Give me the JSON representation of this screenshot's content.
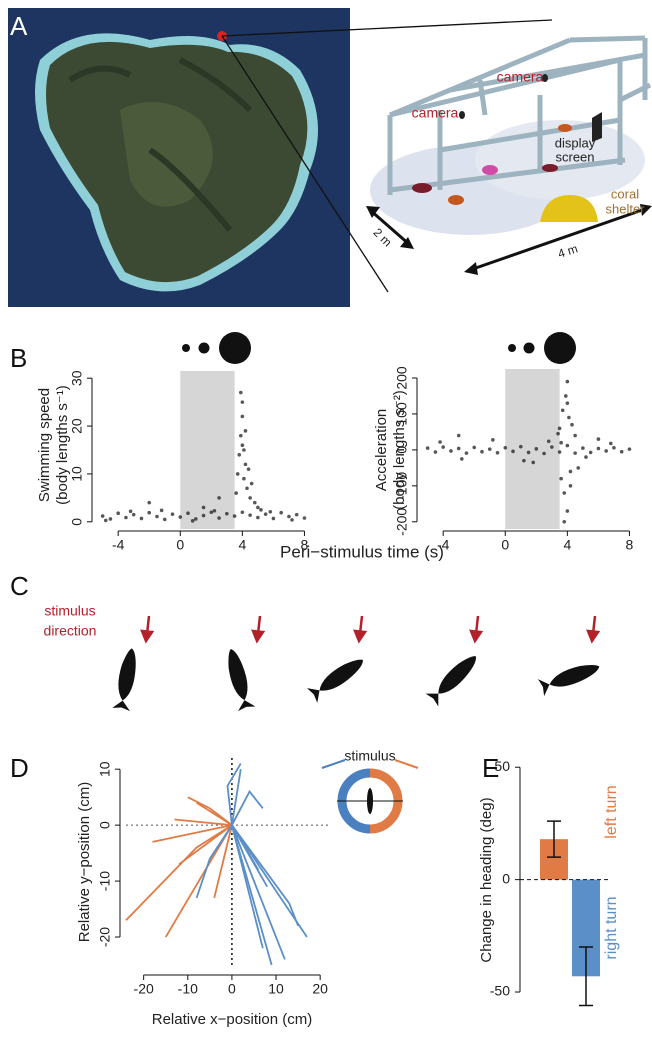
{
  "panel_labels": [
    "A",
    "B",
    "C",
    "D",
    "E"
  ],
  "diagram": {
    "camera_labels": [
      "camera",
      "camera"
    ],
    "screen_label": [
      "display",
      "screen"
    ],
    "shelter_label": [
      "coral",
      "shelter"
    ],
    "dimensions": [
      "2 m",
      "4 m"
    ]
  },
  "stimulus_direction": [
    "stimulus",
    "direction"
  ],
  "chart_data": [
    {
      "type": "scatter",
      "ylabel": [
        "Swimming speed",
        "(body lengths s⁻¹)"
      ],
      "xlabel": "Peri−stimulus time (s)",
      "xlim": [
        -5.3,
        8.1
      ],
      "ylim": [
        -1.5,
        31.5
      ],
      "xticks": [
        -4,
        0,
        4,
        8
      ],
      "yticks": [
        0,
        10,
        20,
        30
      ],
      "shade": [
        0,
        3.5
      ],
      "series": [
        {
          "color": "#111111",
          "x": [
            -5,
            -4.5,
            -4,
            -3.5,
            -3,
            -2.5,
            -2,
            -1.5,
            -1,
            -0.5,
            0,
            0.5,
            1,
            1.5,
            2,
            2.5,
            3,
            3.5,
            4,
            4.5,
            5,
            5.5,
            6,
            6.5,
            7,
            7.5,
            8,
            -4.8,
            -3.2,
            -1.2,
            0.8,
            2.2,
            5.8,
            7.2,
            3.6,
            3.7,
            3.8,
            3.9,
            4.0,
            4.0,
            4.1,
            4.1,
            4.2,
            4.3,
            4.4,
            4.5,
            4.6,
            4.8,
            5.0,
            5.2,
            3.9,
            4.2,
            4.0,
            -2,
            1.5,
            2.5
          ],
          "y": [
            1.2,
            0.6,
            1.8,
            0.9,
            1.5,
            0.7,
            1.9,
            1.1,
            0.5,
            1.6,
            1.0,
            1.8,
            0.6,
            1.3,
            2.0,
            0.8,
            1.7,
            1.2,
            2.0,
            1.4,
            0.9,
            1.6,
            0.7,
            1.9,
            1.1,
            1.5,
            0.8,
            0.3,
            2.2,
            2.4,
            0.2,
            2.3,
            2.1,
            0.4,
            6,
            10,
            14,
            18,
            22,
            25,
            15,
            9,
            12,
            7,
            11,
            5,
            8,
            4,
            3,
            2.5,
            27,
            19,
            16,
            4,
            3,
            5
          ]
        }
      ]
    },
    {
      "type": "scatter",
      "ylabel": [
        "Acceleration",
        "(body lengths s⁻²)"
      ],
      "xlim": [
        -5.3,
        8.1
      ],
      "ylim": [
        -220,
        225
      ],
      "xticks": [
        -4,
        0,
        4,
        8
      ],
      "yticks": [
        -200,
        -100,
        0,
        100,
        200
      ],
      "shade": [
        0,
        3.5
      ],
      "series": [
        {
          "color": "#111111",
          "x": [
            -5,
            -4.5,
            -4,
            -3.5,
            -3,
            -2.5,
            -2,
            -1.5,
            -1,
            -0.5,
            0,
            0.5,
            1,
            1.5,
            2,
            2.5,
            3,
            3.5,
            4,
            4.5,
            5,
            5.5,
            6,
            6.5,
            7,
            7.5,
            8,
            -4.2,
            -2.8,
            -0.8,
            1.2,
            2.8,
            5.2,
            6.8,
            3.5,
            3.6,
            3.7,
            3.8,
            3.9,
            4.0,
            4.0,
            4.1,
            4.2,
            4.3,
            4.5,
            4.7,
            3.8,
            4.0,
            3.6,
            4.2,
            -3,
            1.8,
            6,
            3.4
          ],
          "y": [
            5,
            -6,
            8,
            -3,
            4,
            -9,
            7,
            -5,
            2,
            -8,
            6,
            -4,
            9,
            -7,
            3,
            -10,
            8,
            -6,
            12,
            -9,
            5,
            -7,
            4,
            -3,
            6,
            -5,
            2,
            22,
            -25,
            28,
            -30,
            24,
            -20,
            18,
            60,
            -80,
            110,
            -120,
            150,
            190,
            -170,
            90,
            -100,
            70,
            40,
            -50,
            -200,
            130,
            20,
            -60,
            40,
            -35,
            30,
            45
          ]
        }
      ]
    },
    {
      "type": "line",
      "xlabel": "Relative x−position (cm)",
      "ylabel": "Relative y−position (cm)",
      "xlim": [
        -24,
        22
      ],
      "ylim": [
        -25,
        12
      ],
      "xticks": [
        -20,
        -10,
        0,
        10,
        20
      ],
      "yticks": [
        -20,
        -10,
        0,
        10
      ],
      "zero_lines": true,
      "inset_label": "stimulus",
      "series": [
        {
          "color": "#e07b45",
          "x": [
            0,
            -8,
            -24
          ],
          "y": [
            0,
            -4,
            -17
          ]
        },
        {
          "color": "#e07b45",
          "x": [
            0,
            -15
          ],
          "y": [
            0,
            -20
          ]
        },
        {
          "color": "#e07b45",
          "x": [
            0,
            -12
          ],
          "y": [
            0,
            -7
          ]
        },
        {
          "color": "#e07b45",
          "x": [
            0,
            -5,
            -10
          ],
          "y": [
            0,
            3,
            5
          ]
        },
        {
          "color": "#e07b45",
          "x": [
            0,
            -13
          ],
          "y": [
            0,
            1
          ]
        },
        {
          "color": "#e07b45",
          "x": [
            0,
            -8
          ],
          "y": [
            0,
            4
          ]
        },
        {
          "color": "#e07b45",
          "x": [
            0,
            -4
          ],
          "y": [
            0,
            -13
          ]
        },
        {
          "color": "#e07b45",
          "x": [
            0,
            -18
          ],
          "y": [
            0,
            -3
          ]
        },
        {
          "color": "#e07b45",
          "x": [
            0,
            2
          ],
          "y": [
            0,
            3
          ]
        },
        {
          "color": "#5b8fc7",
          "x": [
            0,
            9
          ],
          "y": [
            0,
            -25
          ]
        },
        {
          "color": "#5b8fc7",
          "x": [
            0,
            12
          ],
          "y": [
            0,
            -24
          ]
        },
        {
          "color": "#5b8fc7",
          "x": [
            0,
            17
          ],
          "y": [
            0,
            -20
          ]
        },
        {
          "color": "#5b8fc7",
          "x": [
            0,
            7
          ],
          "y": [
            0,
            -22
          ]
        },
        {
          "color": "#5b8fc7",
          "x": [
            0,
            -1,
            2
          ],
          "y": [
            0,
            7,
            11
          ]
        },
        {
          "color": "#5b8fc7",
          "x": [
            0,
            4,
            7
          ],
          "y": [
            0,
            6,
            3
          ]
        },
        {
          "color": "#5b8fc7",
          "x": [
            0,
            8
          ],
          "y": [
            0,
            -11
          ]
        },
        {
          "color": "#5b8fc7",
          "x": [
            0,
            13,
            15
          ],
          "y": [
            0,
            -14,
            -18
          ]
        },
        {
          "color": "#5b8fc7",
          "x": [
            0,
            3,
            6
          ],
          "y": [
            0,
            -4,
            -8
          ]
        },
        {
          "color": "#5b8fc7",
          "x": [
            0,
            -5,
            -8
          ],
          "y": [
            0,
            -6,
            -13
          ]
        },
        {
          "color": "#5b8fc7",
          "x": [
            0,
            2
          ],
          "y": [
            0,
            10
          ]
        }
      ]
    },
    {
      "type": "bar",
      "ylabel": "Change in heading (deg)",
      "categories": [
        null,
        null
      ],
      "values": [
        18,
        -43
      ],
      "errors": [
        8,
        13
      ],
      "colors": [
        "#e07b45",
        "#5b8fc7"
      ],
      "annotations": [
        "left turn",
        "right turn"
      ],
      "ylim": [
        -58,
        55
      ],
      "yticks": [
        -50,
        0,
        50
      ],
      "zero_line": true
    }
  ]
}
